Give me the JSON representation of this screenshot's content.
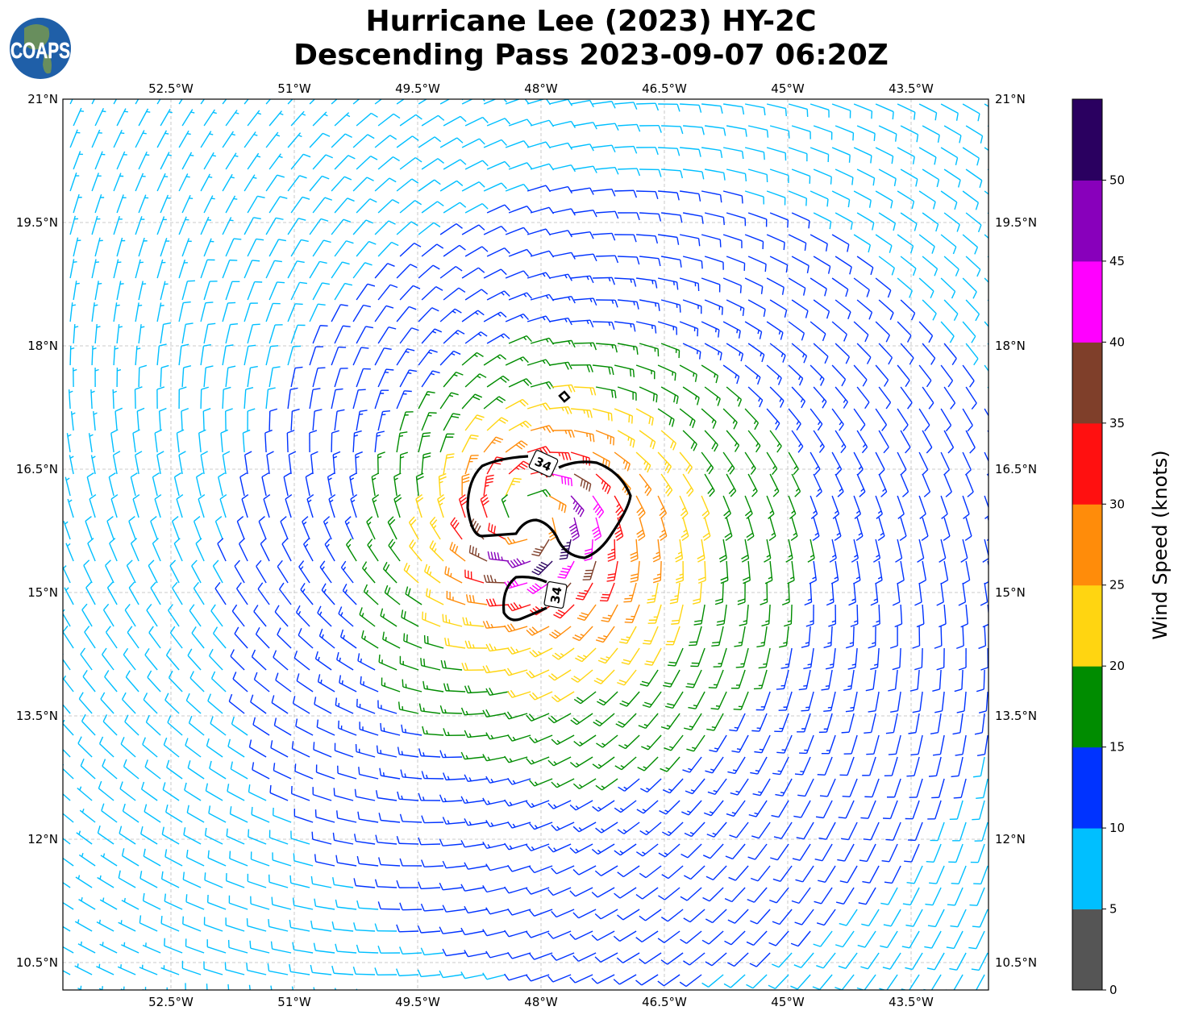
{
  "title": {
    "line1": "Hurricane Lee (2023) HY-2C",
    "line2": "Descending Pass 2023-09-07 06:20Z"
  },
  "logo": {
    "text": "COAPS"
  },
  "map": {
    "lon_ticks": [
      "52.5°W",
      "51°W",
      "49.5°W",
      "48°W",
      "46.5°W",
      "45°W",
      "43.5°W"
    ],
    "lat_ticks": [
      "21°N",
      "19.5°N",
      "18°N",
      "16.5°N",
      "15°N",
      "13.5°N",
      "12°N",
      "10.5°N"
    ],
    "extent": {
      "lon": [
        -53.8,
        -42.7
      ],
      "lat": [
        10.2,
        21.0
      ]
    },
    "grid": true,
    "contour_level": 34,
    "contour_labels": [
      "34",
      "34"
    ]
  },
  "colorbar": {
    "label": "Wind Speed (knots)",
    "ticks": [
      "0",
      "5",
      "10",
      "15",
      "20",
      "25",
      "30",
      "35",
      "40",
      "45",
      "50"
    ],
    "range": [
      0,
      55
    ],
    "colors": [
      "#555555",
      "#00bfff",
      "#0033ff",
      "#008c00",
      "#ffd511",
      "#ff8c0a",
      "#ff1010",
      "#7f3f2a",
      "#ff00ff",
      "#8800bb",
      "#2a0060"
    ]
  }
}
